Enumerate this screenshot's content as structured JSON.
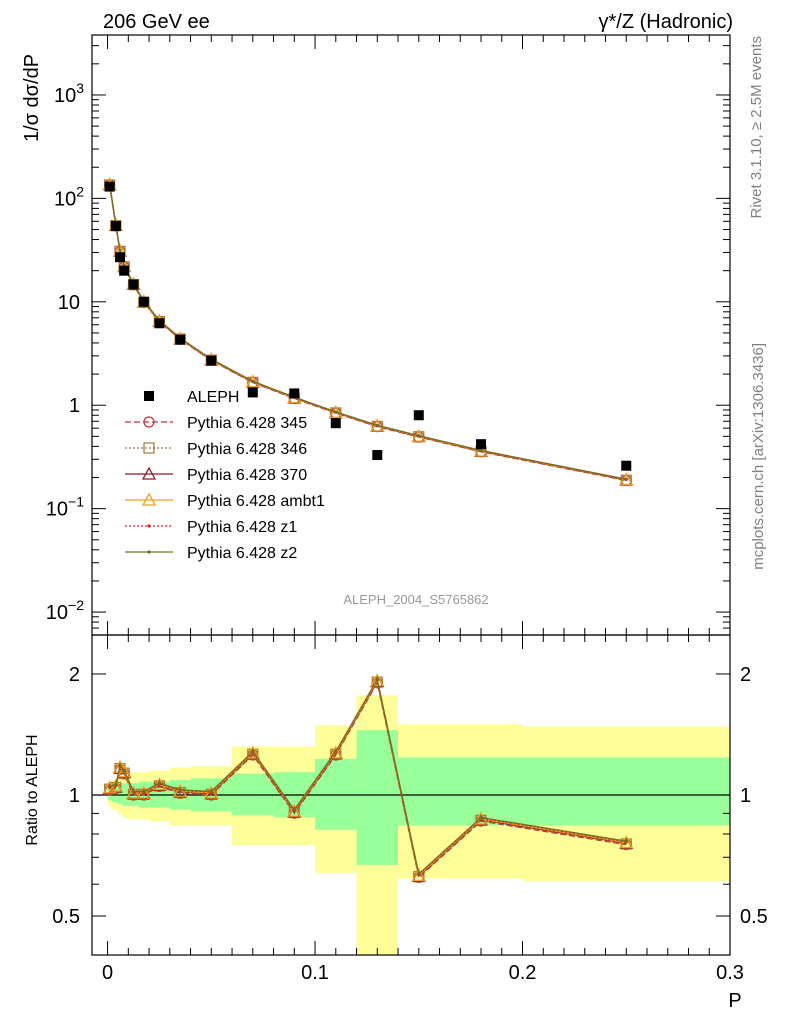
{
  "header": {
    "left_title": "206 GeV ee",
    "right_title": "γ*/Z (Hadronic)"
  },
  "side_labels": {
    "rivet": "Rivet 3.1.10, ≥ 2.5M events",
    "mcplots": "mcplots.cern.ch [arXiv:1306.3436]"
  },
  "analysis_label": "ALEPH_2004_S5765862",
  "colors": {
    "ALEPH": "#000000",
    "p345": "#c03040",
    "p346": "#a07830",
    "p370": "#8b1a2b",
    "ambt1": "#f0a020",
    "z1": "#e02020",
    "z2": "#707020",
    "band_inner": "#99ff99",
    "band_outer": "#ffff99"
  },
  "chart_data": [
    {
      "type": "scatter",
      "name": "main",
      "y_log": true,
      "xlim": [
        -0.0075,
        0.3
      ],
      "ylim": [
        0.006,
        3800
      ],
      "ylabel": "1/σ  dσ/dP",
      "yticks": [
        {
          "value": 0.01,
          "base": "10",
          "exp": "−2"
        },
        {
          "value": 0.1,
          "base": "10",
          "exp": "−1"
        },
        {
          "value": 1,
          "base": "1",
          "exp": ""
        },
        {
          "value": 10,
          "base": "10",
          "exp": ""
        },
        {
          "value": 100,
          "base": "10",
          "exp": "2"
        },
        {
          "value": 1000,
          "base": "10",
          "exp": "3"
        }
      ],
      "x": [
        0.001,
        0.004,
        0.006,
        0.008,
        0.0125,
        0.0175,
        0.025,
        0.035,
        0.05,
        0.07,
        0.09,
        0.11,
        0.13,
        0.15,
        0.18,
        0.25
      ],
      "data_series": {
        "name": "ALEPH",
        "values": [
          130,
          54,
          27,
          20,
          14.7,
          10.0,
          6.2,
          4.3,
          2.7,
          1.33,
          1.3,
          0.67,
          0.33,
          0.8,
          0.42,
          0.26
        ]
      },
      "mc_values": [
        136,
        55,
        31,
        22,
        14.8,
        10.0,
        6.5,
        4.4,
        2.75,
        1.68,
        1.18,
        0.85,
        0.63,
        0.5,
        0.36,
        0.19
      ],
      "legend": [
        {
          "key": "ALEPH",
          "label": "ALEPH",
          "marker": "square"
        },
        {
          "key": "p345",
          "label": "Pythia 6.428 345",
          "marker": "circle",
          "dash": "6,3"
        },
        {
          "key": "p346",
          "label": "Pythia 6.428 346",
          "marker": "opensquare",
          "dash": "2,2"
        },
        {
          "key": "p370",
          "label": "Pythia 6.428 370",
          "marker": "triangle",
          "dash": ""
        },
        {
          "key": "ambt1",
          "label": "Pythia 6.428 ambt1",
          "marker": "triangle",
          "dash": ""
        },
        {
          "key": "z1",
          "label": "Pythia 6.428 z1",
          "marker": "dot",
          "dash": "2,2"
        },
        {
          "key": "z2",
          "label": "Pythia 6.428 z2",
          "marker": "dot",
          "dash": ""
        }
      ]
    },
    {
      "type": "line",
      "name": "ratio",
      "y_log": true,
      "xlim": [
        -0.0075,
        0.3
      ],
      "ylim": [
        0.4,
        2.5
      ],
      "ylabel": "Ratio to ALEPH",
      "xlabel": "P",
      "yticks": [
        {
          "value": 0.5,
          "label": "0.5"
        },
        {
          "value": 1,
          "label": "1"
        },
        {
          "value": 2,
          "label": "2"
        }
      ],
      "xticks": [
        {
          "value": 0,
          "label": "0"
        },
        {
          "value": 0.1,
          "label": "0.1"
        },
        {
          "value": 0.2,
          "label": "0.2"
        },
        {
          "value": 0.3,
          "label": "0.3"
        }
      ],
      "ratio_values": [
        1.04,
        1.05,
        1.17,
        1.14,
        1.01,
        1.01,
        1.06,
        1.02,
        1.01,
        1.27,
        0.91,
        1.27,
        1.92,
        0.63,
        0.87,
        0.76
      ],
      "bins": [
        {
          "lo": 0.0,
          "hi": 0.002,
          "inner": [
            0.97,
            1.04
          ],
          "outer": [
            0.94,
            1.07
          ]
        },
        {
          "lo": 0.002,
          "hi": 0.005,
          "inner": [
            0.96,
            1.05
          ],
          "outer": [
            0.92,
            1.09
          ]
        },
        {
          "lo": 0.005,
          "hi": 0.007,
          "inner": [
            0.95,
            1.06
          ],
          "outer": [
            0.9,
            1.1
          ]
        },
        {
          "lo": 0.007,
          "hi": 0.01,
          "inner": [
            0.94,
            1.07
          ],
          "outer": [
            0.88,
            1.12
          ]
        },
        {
          "lo": 0.01,
          "hi": 0.015,
          "inner": [
            0.94,
            1.07
          ],
          "outer": [
            0.87,
            1.14
          ]
        },
        {
          "lo": 0.015,
          "hi": 0.02,
          "inner": [
            0.93,
            1.08
          ],
          "outer": [
            0.87,
            1.14
          ]
        },
        {
          "lo": 0.02,
          "hi": 0.03,
          "inner": [
            0.93,
            1.08
          ],
          "outer": [
            0.86,
            1.15
          ]
        },
        {
          "lo": 0.03,
          "hi": 0.04,
          "inner": [
            0.92,
            1.09
          ],
          "outer": [
            0.84,
            1.17
          ]
        },
        {
          "lo": 0.04,
          "hi": 0.06,
          "inner": [
            0.91,
            1.1
          ],
          "outer": [
            0.84,
            1.18
          ]
        },
        {
          "lo": 0.06,
          "hi": 0.08,
          "inner": [
            0.89,
            1.13
          ],
          "outer": [
            0.75,
            1.32
          ]
        },
        {
          "lo": 0.08,
          "hi": 0.1,
          "inner": [
            0.88,
            1.14
          ],
          "outer": [
            0.75,
            1.32
          ]
        },
        {
          "lo": 0.1,
          "hi": 0.12,
          "inner": [
            0.82,
            1.23
          ],
          "outer": [
            0.64,
            1.49
          ]
        },
        {
          "lo": 0.12,
          "hi": 0.14,
          "inner": [
            0.67,
            1.45
          ],
          "outer": [
            0.35,
            1.77
          ]
        },
        {
          "lo": 0.14,
          "hi": 0.16,
          "inner": [
            0.84,
            1.24
          ],
          "outer": [
            0.62,
            1.5
          ]
        },
        {
          "lo": 0.16,
          "hi": 0.2,
          "inner": [
            0.84,
            1.24
          ],
          "outer": [
            0.62,
            1.5
          ]
        },
        {
          "lo": 0.2,
          "hi": 0.3,
          "inner": [
            0.84,
            1.24
          ],
          "outer": [
            0.61,
            1.48
          ]
        }
      ]
    }
  ]
}
